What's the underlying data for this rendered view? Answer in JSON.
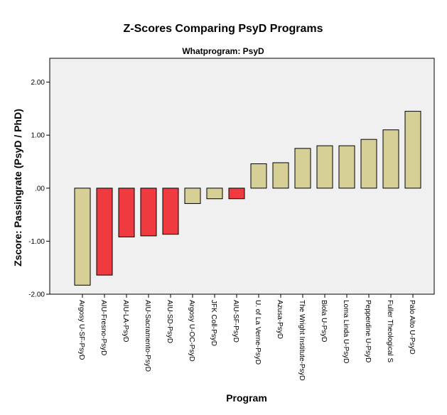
{
  "chart_data": {
    "type": "bar",
    "title": "Z-Scores Comparing PsyD Programs",
    "subtitle": "Whatprogram: PsyD",
    "xlabel": "Program",
    "ylabel": "Zscore: Passingrate (PsyD / PhD)",
    "ylim": [
      -2.0,
      2.45
    ],
    "yticks": [
      2.0,
      1.0,
      0.0,
      -1.0,
      -2.0
    ],
    "ytick_labels": [
      "2.00",
      "1.00",
      ".00",
      "-1.00",
      "-2.00"
    ],
    "categories": [
      "Argosy U-SF-PsyD",
      "AIU-Fresno-PsyD",
      "AIU-LA-PsyD",
      "AIU-Sacramento-PsyD",
      "AIU-SD-PsyD",
      "Argosy U-OC-PsyD",
      "JFK Coll-PsyD",
      "AIU-SF-PsyD",
      "U. of La Verne-PsyD",
      "Azusa-PsyD",
      "The Wright Institute-PsyD",
      "Biola U-PsyD",
      "Loma Linda U-PsyD",
      "Pepperdine U-PsyD",
      "Fuller Theological S",
      "Palo Alto U-PsyD"
    ],
    "values": [
      -1.83,
      -1.64,
      -0.92,
      -0.9,
      -0.87,
      -0.29,
      -0.2,
      -0.2,
      0.46,
      0.48,
      0.75,
      0.8,
      0.8,
      0.92,
      1.1,
      1.45
    ],
    "bar_colors": [
      "#d6cf96",
      "#ef3a3f",
      "#ef3a3f",
      "#ef3a3f",
      "#ef3a3f",
      "#d6cf96",
      "#d6cf96",
      "#ef3a3f",
      "#d6cf96",
      "#d6cf96",
      "#d6cf96",
      "#d6cf96",
      "#d6cf96",
      "#d6cf96",
      "#d6cf96",
      "#d6cf96"
    ],
    "plot_background": "#f0f0f0",
    "grid": false
  }
}
